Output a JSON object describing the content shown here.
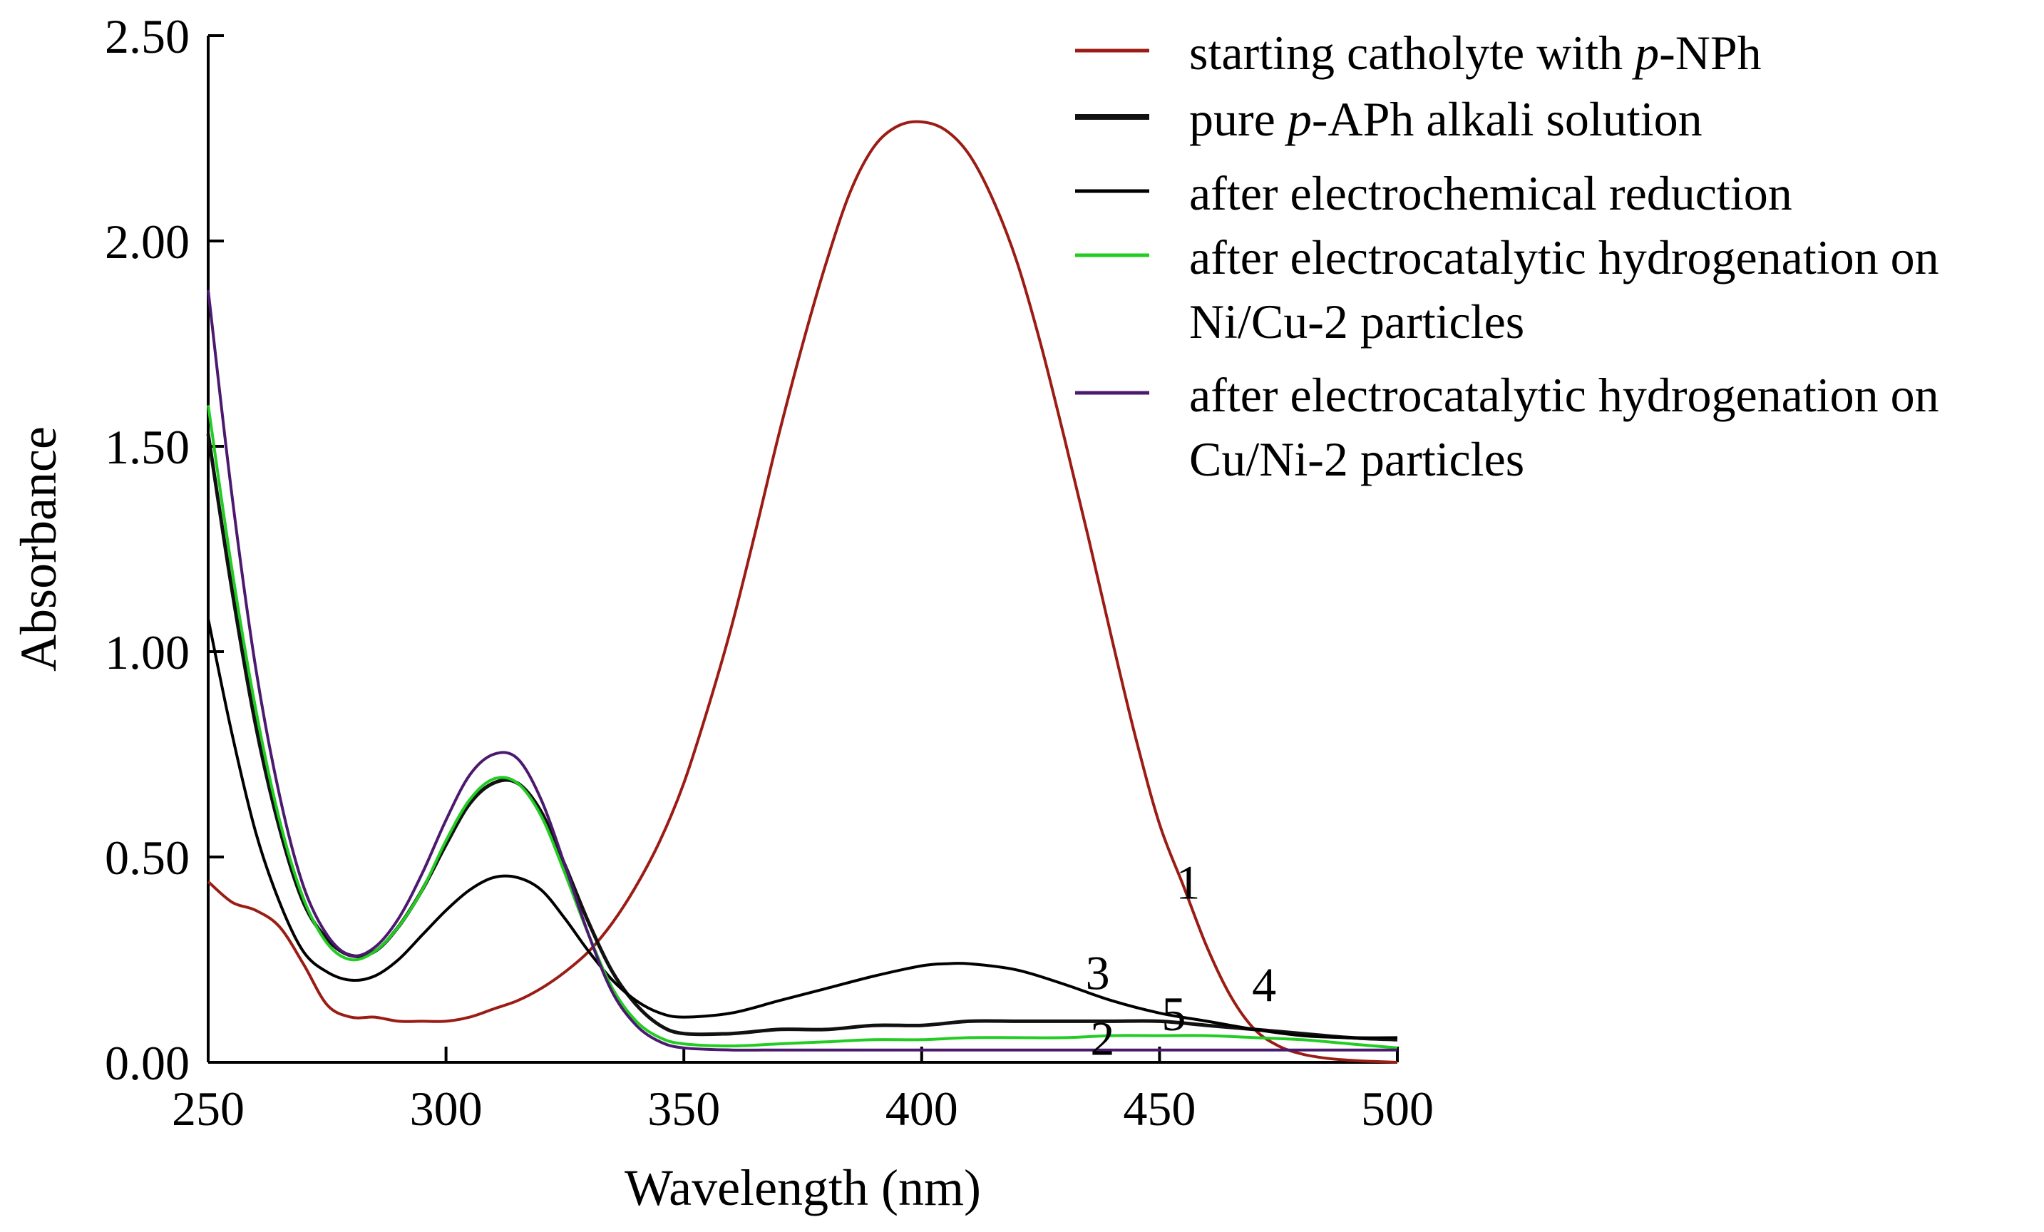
{
  "chart_data": {
    "type": "line",
    "title": "",
    "xlabel": "Wavelength (nm)",
    "ylabel": "Absorbance",
    "xlim": [
      250,
      500
    ],
    "ylim": [
      0,
      2.5
    ],
    "xticks": [
      250,
      300,
      350,
      400,
      450,
      500
    ],
    "yticks": [
      0,
      0.5,
      1.0,
      1.5,
      2.0,
      2.5
    ],
    "xtick_labels": [
      "250",
      "300",
      "350",
      "400",
      "450",
      "500"
    ],
    "ytick_labels": [
      "0.00",
      "0.50",
      "1.00",
      "1.50",
      "2.00",
      "2.50"
    ],
    "legend_position": "top-right",
    "series": [
      {
        "id": "1",
        "number_label": "1",
        "legend_prefix": "starting catholyte with ",
        "legend_italic": "p",
        "legend_suffix": "-NPh",
        "color": "#9b1c14",
        "x": [
          250,
          255,
          260,
          265,
          270,
          275,
          280,
          285,
          290,
          295,
          300,
          305,
          310,
          315,
          320,
          325,
          330,
          335,
          340,
          345,
          350,
          355,
          360,
          365,
          370,
          375,
          380,
          385,
          390,
          395,
          400,
          405,
          410,
          415,
          420,
          425,
          430,
          435,
          440,
          445,
          450,
          455,
          460,
          465,
          470,
          475,
          480,
          485,
          490,
          495,
          500
        ],
        "y": [
          0.44,
          0.39,
          0.37,
          0.33,
          0.24,
          0.14,
          0.11,
          0.11,
          0.1,
          0.1,
          0.1,
          0.11,
          0.13,
          0.15,
          0.18,
          0.22,
          0.27,
          0.34,
          0.43,
          0.54,
          0.68,
          0.86,
          1.06,
          1.29,
          1.53,
          1.75,
          1.95,
          2.12,
          2.23,
          2.28,
          2.29,
          2.27,
          2.21,
          2.1,
          1.95,
          1.75,
          1.52,
          1.28,
          1.03,
          0.79,
          0.58,
          0.43,
          0.28,
          0.16,
          0.08,
          0.04,
          0.02,
          0.01,
          0.005,
          0.002,
          0.0
        ]
      },
      {
        "id": "2",
        "number_label": "2",
        "legend_prefix": "pure ",
        "legend_italic": "p",
        "legend_suffix": "-APh alkali solution",
        "color": "#111111",
        "x": [
          250,
          255,
          260,
          265,
          270,
          275,
          280,
          285,
          290,
          295,
          300,
          305,
          310,
          315,
          320,
          325,
          330,
          335,
          340,
          345,
          350,
          360,
          370,
          380,
          390,
          400,
          410,
          420,
          430,
          440,
          450,
          460,
          470,
          480,
          490,
          500
        ],
        "y": [
          1.53,
          1.15,
          0.82,
          0.57,
          0.39,
          0.3,
          0.26,
          0.27,
          0.33,
          0.42,
          0.53,
          0.63,
          0.68,
          0.68,
          0.61,
          0.48,
          0.34,
          0.22,
          0.14,
          0.09,
          0.07,
          0.07,
          0.08,
          0.08,
          0.09,
          0.09,
          0.1,
          0.1,
          0.1,
          0.1,
          0.1,
          0.09,
          0.08,
          0.07,
          0.06,
          0.055
        ]
      },
      {
        "id": "3",
        "number_label": "3",
        "legend_prefix": "after electrochemical reduction",
        "legend_italic": "",
        "legend_suffix": "",
        "color": "#000000",
        "x": [
          250,
          255,
          260,
          265,
          270,
          275,
          280,
          285,
          290,
          295,
          300,
          305,
          310,
          315,
          320,
          325,
          330,
          335,
          340,
          345,
          350,
          360,
          370,
          380,
          390,
          400,
          405,
          410,
          420,
          430,
          440,
          450,
          460,
          470,
          480,
          490,
          500
        ],
        "y": [
          1.08,
          0.8,
          0.56,
          0.39,
          0.27,
          0.22,
          0.2,
          0.21,
          0.25,
          0.31,
          0.37,
          0.42,
          0.45,
          0.45,
          0.42,
          0.35,
          0.27,
          0.2,
          0.15,
          0.12,
          0.11,
          0.12,
          0.15,
          0.18,
          0.21,
          0.235,
          0.24,
          0.24,
          0.225,
          0.19,
          0.15,
          0.12,
          0.1,
          0.08,
          0.065,
          0.06,
          0.06
        ]
      },
      {
        "id": "4",
        "number_label": "4",
        "legend_prefix": "after electrocatalytic hydrogenation on",
        "legend_line2": "Ni/Cu-2 particles",
        "legend_italic": "",
        "legend_suffix": "",
        "color": "#22cc22",
        "x": [
          250,
          255,
          260,
          265,
          270,
          275,
          280,
          285,
          290,
          295,
          300,
          305,
          310,
          315,
          320,
          325,
          330,
          335,
          340,
          345,
          350,
          360,
          370,
          380,
          390,
          400,
          410,
          420,
          430,
          440,
          450,
          460,
          470,
          480,
          490,
          500
        ],
        "y": [
          1.6,
          1.2,
          0.86,
          0.59,
          0.4,
          0.29,
          0.25,
          0.27,
          0.33,
          0.42,
          0.54,
          0.64,
          0.69,
          0.68,
          0.6,
          0.46,
          0.31,
          0.18,
          0.1,
          0.06,
          0.045,
          0.04,
          0.045,
          0.05,
          0.055,
          0.055,
          0.06,
          0.06,
          0.06,
          0.065,
          0.065,
          0.065,
          0.06,
          0.055,
          0.045,
          0.035
        ]
      },
      {
        "id": "5",
        "number_label": "5",
        "legend_prefix": "after electrocatalytic hydrogenation on",
        "legend_line2": "Cu/Ni-2 particles",
        "legend_italic": "",
        "legend_suffix": "",
        "color": "#4b1a6e",
        "x": [
          250,
          255,
          260,
          265,
          270,
          275,
          280,
          285,
          290,
          295,
          300,
          305,
          310,
          315,
          320,
          325,
          330,
          335,
          340,
          345,
          350,
          360,
          370,
          380,
          390,
          400,
          410,
          420,
          430,
          440,
          450,
          460,
          470,
          480,
          490,
          500
        ],
        "y": [
          1.88,
          1.38,
          0.96,
          0.65,
          0.43,
          0.31,
          0.26,
          0.28,
          0.35,
          0.46,
          0.59,
          0.7,
          0.75,
          0.74,
          0.64,
          0.48,
          0.31,
          0.17,
          0.09,
          0.05,
          0.035,
          0.03,
          0.03,
          0.03,
          0.03,
          0.03,
          0.03,
          0.03,
          0.03,
          0.03,
          0.03,
          0.03,
          0.03,
          0.03,
          0.03,
          0.03
        ]
      }
    ],
    "curve_number_positions": [
      {
        "label": "1",
        "x": 456,
        "y": 0.44
      },
      {
        "label": "2",
        "x": 438,
        "y": 0.06
      },
      {
        "label": "3",
        "x": 437,
        "y": 0.22
      },
      {
        "label": "4",
        "x": 472,
        "y": 0.19
      },
      {
        "label": "5",
        "x": 453,
        "y": 0.12
      }
    ]
  }
}
